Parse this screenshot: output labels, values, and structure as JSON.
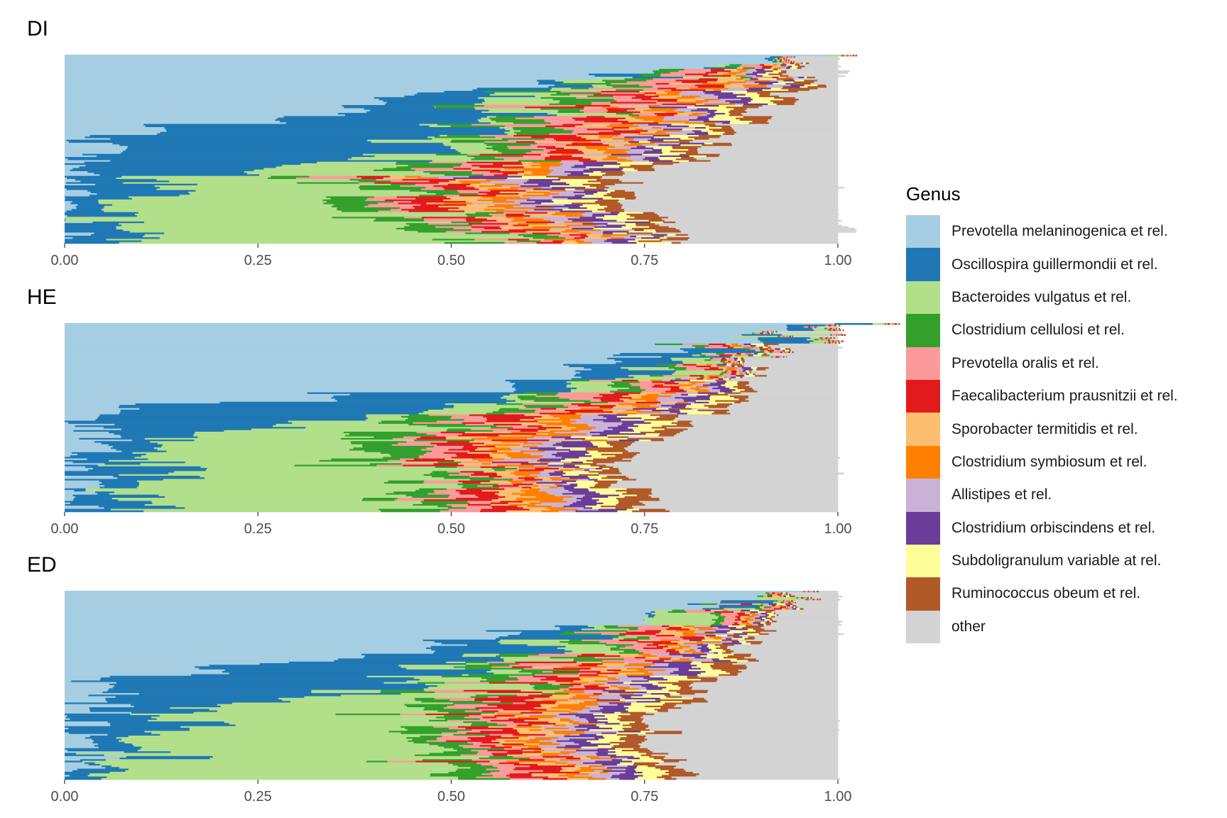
{
  "chart_data": {
    "type": "bar",
    "orientation": "horizontal",
    "stacked": true,
    "legend": {
      "title": "Genus",
      "placement": "right",
      "entries": [
        {
          "name": "Prevotella melaninogenica et rel.",
          "color": "#A6CEE3"
        },
        {
          "name": "Oscillospira guillermondii et rel.",
          "color": "#1F78B4"
        },
        {
          "name": "Bacteroides vulgatus et rel.",
          "color": "#B2DF8A"
        },
        {
          "name": "Clostridium cellulosi et rel.",
          "color": "#33A02C"
        },
        {
          "name": "Prevotella oralis et rel.",
          "color": "#FB9A99"
        },
        {
          "name": "Faecalibacterium prausnitzii et rel.",
          "color": "#E31A1C"
        },
        {
          "name": "Sporobacter termitidis et rel.",
          "color": "#FDBF6F"
        },
        {
          "name": "Clostridium symbiosum et rel.",
          "color": "#FF7F00"
        },
        {
          "name": "Allistipes et rel.",
          "color": "#CAB2D6"
        },
        {
          "name": "Clostridium orbiscindens et rel.",
          "color": "#6A3D9A"
        },
        {
          "name": "Subdoligranulum variable at rel.",
          "color": "#FFFF99"
        },
        {
          "name": "Ruminococcus obeum et rel.",
          "color": "#B15928"
        },
        {
          "name": "other",
          "color": "#D3D3D3"
        }
      ]
    },
    "xlim": [
      0,
      1
    ],
    "x_ticks": [
      "0.00",
      "0.25",
      "0.50",
      "0.75",
      "1.00"
    ],
    "grid": false,
    "samples_per_panel": 120,
    "panels": [
      {
        "title": "DI",
        "profile": [
          {
            "pos": 0.0,
            "main": [
              0.97,
              0.0,
              0.0
            ],
            "boundary": 0.93
          },
          {
            "pos": 0.15,
            "main": [
              0.6,
              0.05,
              0.02
            ],
            "boundary": 0.96
          },
          {
            "pos": 0.3,
            "main": [
              0.32,
              0.2,
              0.05
            ],
            "boundary": 0.9
          },
          {
            "pos": 0.42,
            "main": [
              0.04,
              0.46,
              0.06
            ],
            "boundary": 0.84
          },
          {
            "pos": 0.55,
            "main": [
              0.05,
              0.4,
              0.12
            ],
            "boundary": 0.82
          },
          {
            "pos": 0.65,
            "main": [
              0.01,
              0.12,
              0.25
            ],
            "boundary": 0.72
          },
          {
            "pos": 0.78,
            "main": [
              0.01,
              0.08,
              0.32
            ],
            "boundary": 0.73
          },
          {
            "pos": 0.88,
            "main": [
              0.01,
              0.04,
              0.42
            ],
            "boundary": 0.76
          },
          {
            "pos": 1.0,
            "main": [
              0.01,
              0.06,
              0.46
            ],
            "boundary": 0.8
          }
        ]
      },
      {
        "title": "HE",
        "profile": [
          {
            "pos": 0.0,
            "main": [
              0.98,
              0.0,
              0.0
            ],
            "boundary": 0.93
          },
          {
            "pos": 0.12,
            "main": [
              0.8,
              0.04,
              0.01
            ],
            "boundary": 0.92
          },
          {
            "pos": 0.3,
            "main": [
              0.6,
              0.1,
              0.03
            ],
            "boundary": 0.88
          },
          {
            "pos": 0.45,
            "main": [
              0.06,
              0.4,
              0.05
            ],
            "boundary": 0.84
          },
          {
            "pos": 0.6,
            "main": [
              0.03,
              0.12,
              0.28
            ],
            "boundary": 0.76
          },
          {
            "pos": 0.75,
            "main": [
              0.03,
              0.1,
              0.3
            ],
            "boundary": 0.7
          },
          {
            "pos": 0.88,
            "main": [
              0.02,
              0.05,
              0.38
            ],
            "boundary": 0.74
          },
          {
            "pos": 1.0,
            "main": [
              0.02,
              0.06,
              0.36
            ],
            "boundary": 0.76
          }
        ]
      },
      {
        "title": "ED",
        "profile": [
          {
            "pos": 0.0,
            "main": [
              0.97,
              0.0,
              0.0
            ],
            "boundary": 0.93
          },
          {
            "pos": 0.12,
            "main": [
              0.75,
              0.06,
              0.02
            ],
            "boundary": 0.94
          },
          {
            "pos": 0.3,
            "main": [
              0.45,
              0.12,
              0.06
            ],
            "boundary": 0.88
          },
          {
            "pos": 0.48,
            "main": [
              0.05,
              0.42,
              0.06
            ],
            "boundary": 0.84
          },
          {
            "pos": 0.62,
            "main": [
              0.03,
              0.14,
              0.3
            ],
            "boundary": 0.78
          },
          {
            "pos": 0.78,
            "main": [
              0.02,
              0.08,
              0.36
            ],
            "boundary": 0.77
          },
          {
            "pos": 0.9,
            "main": [
              0.02,
              0.05,
              0.42
            ],
            "boundary": 0.79
          },
          {
            "pos": 1.0,
            "main": [
              0.02,
              0.06,
              0.44
            ],
            "boundary": 0.8
          }
        ]
      }
    ]
  }
}
